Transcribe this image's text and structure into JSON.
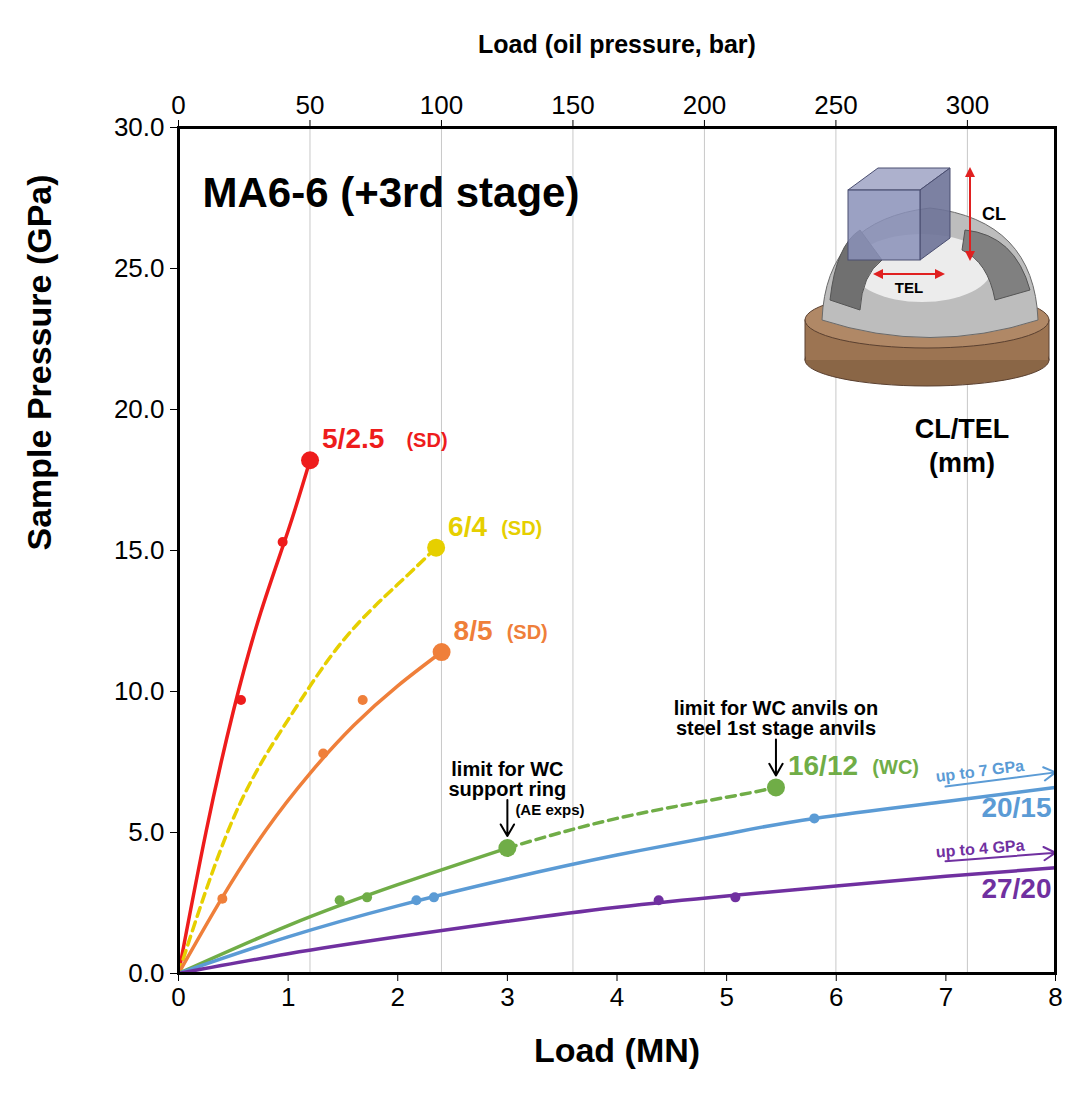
{
  "chart_data": {
    "type": "line",
    "title": "MA6-6 (+3rd stage)",
    "xlabel": "Load (MN)",
    "ylabel": "Sample Pressure (GPa)",
    "x2label": "Load (oil pressure, bar)",
    "xlim": [
      0,
      8
    ],
    "xticks": [
      0,
      1,
      2,
      3,
      4,
      5,
      6,
      7,
      8
    ],
    "ylim": [
      0,
      30
    ],
    "yticks": [
      {
        "value": 0,
        "label": "0.0"
      },
      {
        "value": 5,
        "label": "5.0"
      },
      {
        "value": 10,
        "label": "10.0"
      },
      {
        "value": 15,
        "label": "15.0"
      },
      {
        "value": 20,
        "label": "20.0"
      },
      {
        "value": 25,
        "label": "25.0"
      },
      {
        "value": 30,
        "label": "30.0"
      }
    ],
    "x2lim": [
      0,
      333.5
    ],
    "x2ticks": [
      0,
      50,
      100,
      150,
      200,
      250,
      300
    ],
    "grid": true,
    "series": [
      {
        "name": "5/2.5",
        "tag": "(SD)",
        "color": "#ee1c1c",
        "segments": [
          {
            "line_style": "solid",
            "x": [
              0,
              0.25,
              0.5,
              0.75,
              1.0,
              1.2
            ],
            "values": [
              0,
              5.0,
              9.3,
              12.8,
              15.7,
              18.2
            ]
          }
        ],
        "points": {
          "x": [
            0.57,
            0.95
          ],
          "values": [
            9.7,
            15.3
          ]
        },
        "end_points": {
          "x": [
            1.2
          ],
          "values": [
            18.2
          ]
        }
      },
      {
        "name": "6/4",
        "tag": "(SD)",
        "color": "#e6cf00",
        "segments": [
          {
            "line_style": "dashed",
            "x": [
              0,
              0.5,
              1.0,
              1.5,
              2.0,
              2.35
            ],
            "values": [
              0,
              5.5,
              9.0,
              11.8,
              13.8,
              15.1
            ]
          }
        ],
        "end_points": {
          "x": [
            2.35
          ],
          "values": [
            15.1
          ]
        }
      },
      {
        "name": "8/5",
        "tag": "(SD)",
        "color": "#ef7f3a",
        "segments": [
          {
            "line_style": "solid",
            "x": [
              0,
              0.4,
              0.8,
              1.2,
              1.6,
              2.0,
              2.4
            ],
            "values": [
              0,
              2.7,
              5.1,
              7.1,
              8.8,
              10.2,
              11.4
            ]
          }
        ],
        "points": {
          "x": [
            0.4,
            1.32,
            1.68
          ],
          "values": [
            2.65,
            7.8,
            9.7
          ]
        },
        "end_points": {
          "x": [
            2.4
          ],
          "values": [
            11.4
          ]
        }
      },
      {
        "name": "16/12",
        "tag": "(WC)",
        "color": "#70ad47",
        "segments": [
          {
            "line_style": "solid",
            "x": [
              0,
              1,
              2,
              3
            ],
            "values": [
              0,
              1.7,
              3.15,
              4.45
            ]
          },
          {
            "line_style": "dashed",
            "x": [
              3,
              4,
              5,
              5.45
            ],
            "values": [
              4.45,
              5.5,
              6.25,
              6.6
            ]
          }
        ],
        "points": {
          "x": [
            1.47,
            1.72
          ],
          "values": [
            2.6,
            2.7
          ]
        },
        "end_points": {
          "x": [
            3.0,
            5.45
          ],
          "values": [
            4.45,
            6.6
          ]
        }
      },
      {
        "name": "20/15",
        "color": "#5b9bd5",
        "note": "up to 7 GPa",
        "segments": [
          {
            "line_style": "solid",
            "x": [
              0,
              1,
              2,
              3,
              4,
              5,
              5.8,
              7,
              8
            ],
            "values": [
              0,
              1.3,
              2.4,
              3.35,
              4.2,
              4.95,
              5.5,
              6.1,
              6.6
            ]
          }
        ],
        "points": {
          "x": [
            2.17,
            2.33,
            5.8
          ],
          "values": [
            2.6,
            2.7,
            5.5
          ]
        }
      },
      {
        "name": "27/20",
        "color": "#7030a0",
        "note": "up to 4 GPa",
        "segments": [
          {
            "line_style": "solid",
            "x": [
              0,
              1,
              2,
              3,
              4,
              5,
              6,
              7,
              8
            ],
            "values": [
              0,
              0.7,
              1.3,
              1.85,
              2.35,
              2.75,
              3.1,
              3.45,
              3.75
            ]
          }
        ],
        "points": {
          "x": [
            4.38,
            5.08
          ],
          "values": [
            2.6,
            2.7
          ]
        }
      }
    ],
    "annotations": [
      {
        "text": "limit for WC\nsupport ring",
        "note": "(AE exps)",
        "x": 3.0,
        "y": 4.45
      },
      {
        "text": "limit for WC anvils on\nsteel 1st stage anvils",
        "x": 5.45,
        "y": 6.6
      }
    ],
    "inset": {
      "labels": [
        "CL",
        "TEL"
      ],
      "caption": "CL/TEL\n(mm)"
    }
  }
}
